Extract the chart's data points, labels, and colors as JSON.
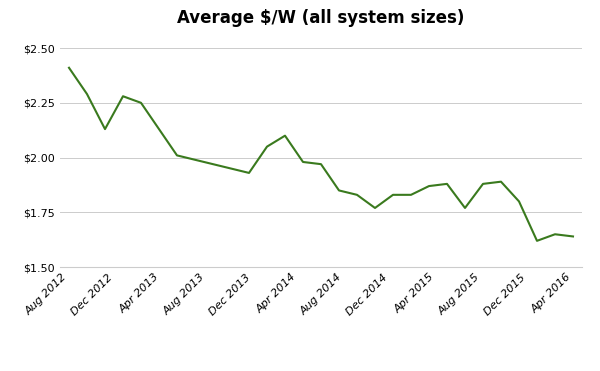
{
  "title": "Average $/W (all system sizes)",
  "line_color": "#3a7a1e",
  "background_color": "#ffffff",
  "grid_color": "#cccccc",
  "x_labels": [
    "Aug 2012",
    "Dec 2012",
    "Apr 2013",
    "Aug 2013",
    "Dec 2013",
    "Apr 2014",
    "Aug 2014",
    "Dec 2014",
    "Apr 2015",
    "Aug 2015",
    "Dec 2015",
    "Apr 2016"
  ],
  "ylim": [
    1.5,
    2.55
  ],
  "yticks": [
    1.5,
    1.75,
    2.0,
    2.25,
    2.5
  ],
  "values": [
    2.41,
    2.29,
    2.13,
    2.28,
    2.25,
    2.13,
    2.01,
    1.99,
    1.97,
    1.95,
    1.93,
    2.05,
    2.1,
    1.98,
    1.97,
    1.85,
    1.83,
    1.77,
    1.83,
    1.83,
    1.87,
    1.88,
    1.77,
    1.88,
    1.89,
    1.8,
    1.62,
    1.65,
    1.64
  ],
  "title_fontsize": 12,
  "tick_fontsize": 8,
  "ytick_fontsize": 8,
  "line_width": 1.5
}
